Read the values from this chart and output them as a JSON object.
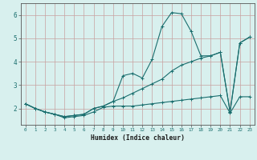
{
  "title": "",
  "xlabel": "Humidex (Indice chaleur)",
  "ylabel": "",
  "bg_color": "#d8f0ee",
  "grid_color": "#c8a0a0",
  "line_color": "#1a6e6e",
  "xlim": [
    -0.5,
    23.5
  ],
  "ylim": [
    1.3,
    6.5
  ],
  "xticks": [
    0,
    1,
    2,
    3,
    4,
    5,
    6,
    7,
    8,
    9,
    10,
    11,
    12,
    13,
    14,
    15,
    16,
    17,
    18,
    19,
    20,
    21,
    22,
    23
  ],
  "yticks": [
    2,
    3,
    4,
    5,
    6
  ],
  "line1_x": [
    0,
    1,
    2,
    3,
    4,
    5,
    6,
    7,
    8,
    9,
    10,
    11,
    12,
    13,
    14,
    15,
    16,
    17,
    18,
    19,
    20,
    21,
    22,
    23
  ],
  "line1_y": [
    2.2,
    2.0,
    1.85,
    1.75,
    1.6,
    1.65,
    1.7,
    1.85,
    2.05,
    2.1,
    2.1,
    2.1,
    2.15,
    2.2,
    2.25,
    2.3,
    2.35,
    2.4,
    2.45,
    2.5,
    2.55,
    1.8,
    2.5,
    2.5
  ],
  "line2_x": [
    0,
    1,
    2,
    3,
    4,
    5,
    6,
    7,
    8,
    9,
    10,
    11,
    12,
    13,
    14,
    15,
    16,
    17,
    18,
    19,
    20,
    21,
    22,
    23
  ],
  "line2_y": [
    2.2,
    2.0,
    1.85,
    1.75,
    1.65,
    1.7,
    1.75,
    2.0,
    2.1,
    2.3,
    3.4,
    3.5,
    3.3,
    4.1,
    5.5,
    6.1,
    6.05,
    5.3,
    4.25,
    4.25,
    4.4,
    1.85,
    4.8,
    5.05
  ],
  "line3_x": [
    0,
    1,
    2,
    3,
    4,
    5,
    6,
    7,
    8,
    9,
    10,
    11,
    12,
    13,
    14,
    15,
    16,
    17,
    18,
    19,
    20,
    21,
    22,
    23
  ],
  "line3_y": [
    2.2,
    2.0,
    1.85,
    1.75,
    1.65,
    1.7,
    1.75,
    2.0,
    2.1,
    2.3,
    2.45,
    2.65,
    2.85,
    3.05,
    3.25,
    3.6,
    3.85,
    4.0,
    4.15,
    4.25,
    4.4,
    1.85,
    4.8,
    5.05
  ]
}
